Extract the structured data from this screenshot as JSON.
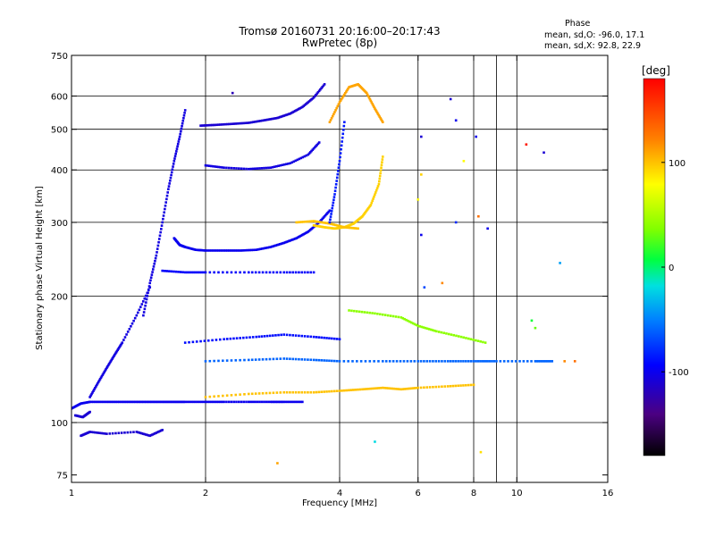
{
  "chart_data": {
    "type": "scatter",
    "title": "Tromsø 20160731 20:16:00–20:17:43",
    "subtitle": "RwPretec (8p)",
    "xlabel": "Frequency [MHz]",
    "ylabel": "Stationary phase Virtual Height [km]",
    "x_scale": "log",
    "y_scale": "log",
    "xlim": [
      1,
      16
    ],
    "ylim": [
      72,
      750
    ],
    "x_ticks": [
      1,
      2,
      4,
      6,
      8,
      10,
      16
    ],
    "x_tick_labels": [
      "1",
      "2",
      "4",
      "6",
      "8",
      "10",
      "16"
    ],
    "y_ticks": [
      75,
      100,
      200,
      300,
      400,
      500,
      600,
      750
    ],
    "y_tick_labels": [
      "75",
      "100",
      "200",
      "300",
      "400",
      "500",
      "600",
      "750"
    ],
    "grid_x": [
      2,
      4,
      6,
      8,
      9,
      10
    ],
    "grid_y": [
      100,
      200,
      300,
      400,
      500,
      600
    ],
    "phase_legend": {
      "title": "Phase",
      "line_o": "mean, sd,O: -96.0, 17.1",
      "line_x": "mean, sd,X:  92.8, 22.9"
    },
    "colorbar": {
      "label": "[deg]",
      "ticks": [
        100,
        0,
        -100
      ],
      "tick_labels": [
        "100",
        "0",
        "-100"
      ],
      "range": [
        -180,
        180
      ]
    },
    "series": [
      {
        "traces": [
          {
            "x": [
              1.0,
              1.05,
              1.1,
              1.2,
              1.3,
              1.4,
              1.5,
              1.6,
              1.7,
              1.8,
              2.0,
              2.2,
              2.5,
              2.8,
              3.0,
              3.3
            ],
            "y": [
              108,
              111,
              112,
              112,
              112,
              112,
              112,
              112,
              112,
              112,
              112,
              112,
              112,
              112,
              112,
              112
            ],
            "phase": -100
          },
          {
            "x": [
              1.02,
              1.06,
              1.1
            ],
            "y": [
              104,
              103,
              106
            ],
            "phase": -110
          },
          {
            "x": [
              1.1,
              1.15,
              1.2,
              1.25,
              1.3,
              1.4,
              1.5
            ],
            "y": [
              115,
              125,
              135,
              145,
              155,
              180,
              210
            ],
            "phase": -105
          },
          {
            "x": [
              1.45,
              1.5,
              1.55,
              1.6,
              1.65,
              1.7,
              1.75,
              1.8
            ],
            "y": [
              180,
              215,
              250,
              300,
              360,
              420,
              480,
              555
            ],
            "phase": -105
          },
          {
            "x": [
              1.7,
              1.75,
              1.8,
              1.9,
              2.0,
              2.2,
              2.4,
              2.6,
              2.8,
              3.0,
              3.2,
              3.4,
              3.6,
              3.8
            ],
            "y": [
              275,
              265,
              262,
              258,
              257,
              257,
              257,
              258,
              262,
              268,
              275,
              285,
              300,
              320
            ],
            "phase": -100
          },
          {
            "x": [
              1.95,
              2.1,
              2.3,
              2.5,
              2.7,
              2.9,
              3.1,
              3.3,
              3.5,
              3.7
            ],
            "y": [
              510,
              512,
              515,
              518,
              525,
              532,
              545,
              565,
              595,
              640
            ],
            "phase": -110
          },
          {
            "x": [
              2.0,
              2.2,
              2.5,
              2.8,
              3.1,
              3.4,
              3.6
            ],
            "y": [
              410,
              405,
              402,
              405,
              415,
              435,
              465
            ],
            "phase": -105
          },
          {
            "x": [
              3.5,
              3.7,
              3.9,
              4.1,
              4.3,
              4.5,
              4.7,
              4.9,
              5.0
            ],
            "y": [
              295,
              292,
              290,
              292,
              298,
              310,
              330,
              370,
              430
            ],
            "phase": 95
          },
          {
            "x": [
              3.2,
              3.5,
              3.8,
              4.1,
              4.4
            ],
            "y": [
              300,
              302,
              298,
              292,
              290
            ],
            "phase": 100
          },
          {
            "x": [
              3.8,
              4.0,
              4.2,
              4.4,
              4.6,
              4.8,
              5.0
            ],
            "y": [
              520,
              580,
              630,
              640,
              610,
              560,
              520
            ],
            "phase": 110
          },
          {
            "x": [
              3.8,
              3.9,
              4.0,
              4.1
            ],
            "y": [
              300,
              350,
              420,
              520
            ],
            "phase": -85
          },
          {
            "x": [
              1.6,
              1.8,
              2.0,
              2.5,
              3.0,
              3.5
            ],
            "y": [
              230,
              228,
              228,
              228,
              228,
              228
            ],
            "phase": -95
          },
          {
            "x": [
              2.0,
              2.5,
              3.0,
              3.5,
              4.0,
              4.5,
              5.0,
              5.5,
              6.0,
              7.0,
              8.0
            ],
            "y": [
              115,
              117,
              118,
              118,
              119,
              120,
              121,
              120,
              121,
              122,
              123
            ],
            "phase": 100
          },
          {
            "x": [
              2.0,
              2.5,
              3.0,
              3.5,
              4.0,
              5.0,
              6.0,
              7.0,
              8.0,
              9.0,
              11.0,
              12.0
            ],
            "y": [
              140,
              141,
              142,
              141,
              140,
              140,
              140,
              140,
              140,
              140,
              140,
              140
            ],
            "phase": -60
          },
          {
            "x": [
              1.8,
              2.2,
              2.6,
              3.0,
              3.5,
              4.0
            ],
            "y": [
              155,
              158,
              160,
              162,
              160,
              158
            ],
            "phase": -90
          },
          {
            "x": [
              4.2,
              4.8,
              5.5,
              6.0,
              6.6,
              7.5,
              8.5
            ],
            "y": [
              185,
              182,
              178,
              170,
              165,
              160,
              155
            ],
            "phase": 40
          },
          {
            "x": [
              1.05,
              1.1,
              1.2,
              1.4,
              1.5,
              1.6
            ],
            "y": [
              93,
              95,
              94,
              95,
              93,
              96
            ],
            "phase": -110
          }
        ],
        "points": [
          {
            "x": 2.3,
            "y": 610,
            "phase": -120
          },
          {
            "x": 6.1,
            "y": 480,
            "phase": -110
          },
          {
            "x": 6.1,
            "y": 390,
            "phase": 95
          },
          {
            "x": 6.0,
            "y": 340,
            "phase": 80
          },
          {
            "x": 6.1,
            "y": 280,
            "phase": -100
          },
          {
            "x": 7.1,
            "y": 590,
            "phase": -110
          },
          {
            "x": 7.3,
            "y": 525,
            "phase": -100
          },
          {
            "x": 7.6,
            "y": 420,
            "phase": 80
          },
          {
            "x": 7.3,
            "y": 300,
            "phase": -80
          },
          {
            "x": 8.1,
            "y": 480,
            "phase": -100
          },
          {
            "x": 8.2,
            "y": 310,
            "phase": 130
          },
          {
            "x": 8.6,
            "y": 290,
            "phase": -100
          },
          {
            "x": 10.5,
            "y": 460,
            "phase": 170
          },
          {
            "x": 11.5,
            "y": 440,
            "phase": -110
          },
          {
            "x": 12.5,
            "y": 240,
            "phase": -40
          },
          {
            "x": 6.2,
            "y": 210,
            "phase": -70
          },
          {
            "x": 6.8,
            "y": 215,
            "phase": 120
          },
          {
            "x": 2.9,
            "y": 80,
            "phase": 110
          },
          {
            "x": 4.8,
            "y": 90,
            "phase": -20
          },
          {
            "x": 8.3,
            "y": 85,
            "phase": 90
          },
          {
            "x": 11.0,
            "y": 168,
            "phase": 30
          },
          {
            "x": 10.8,
            "y": 175,
            "phase": 10
          },
          {
            "x": 12.8,
            "y": 140,
            "phase": 120
          },
          {
            "x": 13.5,
            "y": 140,
            "phase": 130
          }
        ]
      }
    ]
  }
}
